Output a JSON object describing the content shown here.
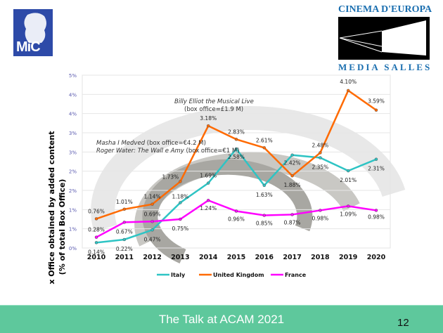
{
  "header": {
    "left_logo": "MiC",
    "right_logo_top": "CINEMA D'EUROPA",
    "right_logo_bottom": "MEDIA SALLES"
  },
  "chart_data": {
    "type": "line",
    "title": "",
    "xlabel": "",
    "ylabel": "Gross Box Office obtained by added content",
    "ylabel2": "(% of total Box Office)",
    "x": [
      "2010",
      "2011",
      "2012",
      "2013",
      "2014",
      "2015",
      "2016",
      "2017",
      "2018",
      "2019",
      "2020"
    ],
    "ylim": [
      0,
      4.5
    ],
    "yticks": [
      0,
      0.5,
      1,
      1.5,
      2,
      2.5,
      3,
      3.5,
      4,
      4.5
    ],
    "ytick_labels": [
      "0%",
      "1%",
      "1%",
      "2%",
      "2%",
      "3%",
      "3%",
      "4%",
      "4%",
      "5%"
    ],
    "grid": true,
    "legend": "bottom",
    "series": [
      {
        "name": "Italy",
        "color": "#2ec4c4",
        "values": [
          0.14,
          0.22,
          0.47,
          1.18,
          1.69,
          2.58,
          1.63,
          2.42,
          2.35,
          2.01,
          2.31
        ],
        "labels": [
          "0.14%",
          "0.22%",
          "0.47%",
          "1.18%",
          "1.69%",
          "2.58%",
          "1.63%",
          "2.42%",
          "2.35%",
          "2.01%",
          "2.31%"
        ]
      },
      {
        "name": "United Kingdom",
        "color": "#ff6a00",
        "values": [
          0.76,
          1.01,
          1.14,
          1.73,
          3.18,
          2.83,
          2.61,
          1.88,
          2.48,
          4.1,
          3.59
        ],
        "labels": [
          "0.76%",
          "1.01%",
          "1.14%",
          "1.73%",
          "3.18%",
          "2.83%",
          "2.61%",
          "1.88%",
          "2.48%",
          "4.10%",
          "3.59%"
        ]
      },
      {
        "name": "France",
        "color": "#ff00ff",
        "values": [
          0.28,
          0.67,
          0.69,
          0.75,
          1.24,
          0.96,
          0.85,
          0.87,
          0.98,
          1.09,
          0.98
        ],
        "labels": [
          "0.28%",
          "0.67%",
          "0.69%",
          "0.75%",
          "1.24%",
          "0.96%",
          "0.85%",
          "0.87%",
          "0.98%",
          "1.09%",
          "0.98%"
        ]
      }
    ],
    "annotations": [
      {
        "italic": "Billy Elliot the Musical Live",
        "normal": ""
      },
      {
        "italic": "",
        "normal": "(box office=£1.9 M)"
      },
      {
        "italic": "Masha I Medved",
        "normal": " (box office=€4.2 M)"
      },
      {
        "italic": "Roger Water: The Wall e Amy",
        "normal": " (box office=€1 M)"
      }
    ]
  },
  "footer": {
    "title": "The Talk at ACAM 2021",
    "page": "12",
    "color": "#5ec89c"
  }
}
